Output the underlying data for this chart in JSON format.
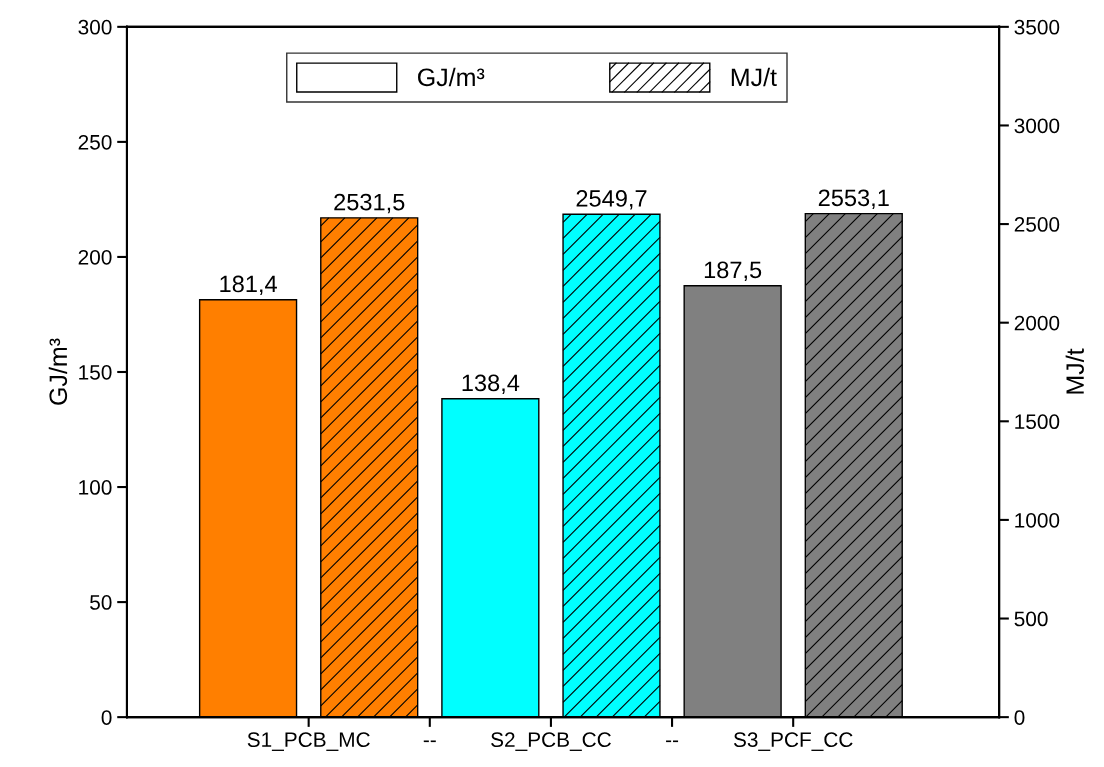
{
  "chart_data": {
    "type": "bar",
    "ylabel": "GJ/m³",
    "y2label": "MJ/t",
    "categories": [
      "S1_PCB_MC",
      "--",
      "S2_PCB_CC",
      "--",
      "S3_PCF_CC",
      null
    ],
    "ylim": [
      0,
      300
    ],
    "yticks": [
      0,
      50,
      100,
      150,
      200,
      250,
      300
    ],
    "y2lim": [
      0,
      3500
    ],
    "y2ticks": [
      0,
      500,
      1000,
      1500,
      2000,
      2500,
      3000,
      3500
    ],
    "legend": "top",
    "grid": false,
    "series": [
      {
        "name": "GJ/m³",
        "values": [
          181.4,
          null,
          138.4,
          null,
          187.5,
          null
        ],
        "colors": [
          "#ff7f00",
          null,
          "#00ffff",
          null,
          "#808080",
          null
        ],
        "value_labels": [
          "181,4",
          null,
          "138,4",
          null,
          "187,5",
          null
        ]
      },
      {
        "name": "MJ/t",
        "axis": "y2",
        "values": [
          null,
          2531.5,
          null,
          2549.7,
          null,
          2553.1
        ],
        "colors": [
          null,
          "#ff7f00",
          null,
          "#00ffff",
          null,
          "#808080"
        ],
        "value_labels": [
          null,
          "2531,5",
          null,
          "2549,7",
          null,
          "2553,1"
        ]
      }
    ]
  }
}
